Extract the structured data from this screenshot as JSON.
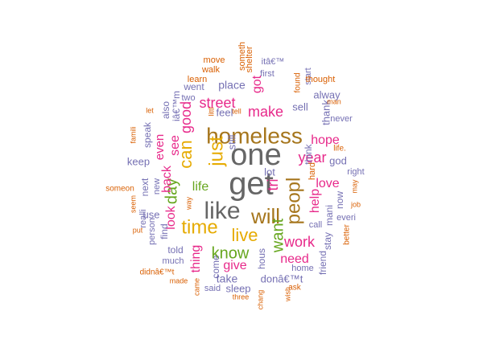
{
  "chart_data": {
    "type": "wordcloud",
    "words": [
      {
        "text": "get",
        "rank": 1,
        "color": "#666666"
      },
      {
        "text": "one",
        "rank": 1,
        "color": "#666666"
      },
      {
        "text": "homeless",
        "rank": 2,
        "color": "#a6761d"
      },
      {
        "text": "like",
        "rank": 2,
        "color": "#666666"
      },
      {
        "text": "will",
        "rank": 3,
        "color": "#a6761d"
      },
      {
        "text": "peopl",
        "rank": 3,
        "color": "#a6761d"
      },
      {
        "text": "just",
        "rank": 3,
        "color": "#e6ab02"
      },
      {
        "text": "time",
        "rank": 3,
        "color": "#e6ab02"
      },
      {
        "text": "can",
        "rank": 4,
        "color": "#e6ab02"
      },
      {
        "text": "live",
        "rank": 4,
        "color": "#e6ab02"
      },
      {
        "text": "know",
        "rank": 4,
        "color": "#66a61e"
      },
      {
        "text": "want",
        "rank": 4,
        "color": "#66a61e"
      },
      {
        "text": "day",
        "rank": 4,
        "color": "#66a61e"
      },
      {
        "text": "year",
        "rank": 5,
        "color": "#e7298a"
      },
      {
        "text": "make",
        "rank": 5,
        "color": "#e7298a"
      },
      {
        "text": "street",
        "rank": 5,
        "color": "#e7298a"
      },
      {
        "text": "work",
        "rank": 5,
        "color": "#e7298a"
      },
      {
        "text": "good",
        "rank": 5,
        "color": "#e7298a"
      },
      {
        "text": "tri",
        "rank": 5,
        "color": "#e7298a"
      },
      {
        "text": "help",
        "rank": 5,
        "color": "#e7298a"
      },
      {
        "text": "life",
        "rank": 5,
        "color": "#66a61e"
      },
      {
        "text": "hope",
        "rank": 6,
        "color": "#e7298a"
      },
      {
        "text": "love",
        "rank": 6,
        "color": "#e7298a"
      },
      {
        "text": "see",
        "rank": 6,
        "color": "#e7298a"
      },
      {
        "text": "need",
        "rank": 6,
        "color": "#e7298a"
      },
      {
        "text": "give",
        "rank": 6,
        "color": "#e7298a"
      },
      {
        "text": "look",
        "rank": 6,
        "color": "#e7298a"
      },
      {
        "text": "back",
        "rank": 6,
        "color": "#e7298a"
      },
      {
        "text": "thing",
        "rank": 6,
        "color": "#e7298a"
      },
      {
        "text": "got",
        "rank": 6,
        "color": "#e7298a"
      },
      {
        "text": "even",
        "rank": 6,
        "color": "#e7298a"
      },
      {
        "text": "take",
        "rank": 7,
        "color": "#7570b3"
      },
      {
        "text": "place",
        "rank": 7,
        "color": "#7570b3"
      },
      {
        "text": "keep",
        "rank": 7,
        "color": "#7570b3"
      },
      {
        "text": "sell",
        "rank": 7,
        "color": "#7570b3"
      },
      {
        "text": "god",
        "rank": 7,
        "color": "#7570b3"
      },
      {
        "text": "feel",
        "rank": 7,
        "color": "#7570b3"
      },
      {
        "text": "alway",
        "rank": 7,
        "color": "#7570b3"
      },
      {
        "text": "thank",
        "rank": 7,
        "color": "#7570b3"
      },
      {
        "text": "use",
        "rank": 7,
        "color": "#7570b3"
      },
      {
        "text": "lot",
        "rank": 7,
        "color": "#7570b3"
      },
      {
        "text": "still",
        "rank": 7,
        "color": "#7570b3"
      },
      {
        "text": "sleep",
        "rank": 7,
        "color": "#7570b3"
      },
      {
        "text": "donâ€™t",
        "rank": 7,
        "color": "#7570b3"
      },
      {
        "text": "come",
        "rank": 7,
        "color": "#7570b3"
      },
      {
        "text": "hous",
        "rank": 7,
        "color": "#7570b3"
      },
      {
        "text": "stay",
        "rank": 7,
        "color": "#7570b3"
      },
      {
        "text": "now",
        "rank": 7,
        "color": "#7570b3"
      },
      {
        "text": "told",
        "rank": 7,
        "color": "#7570b3"
      },
      {
        "text": "find",
        "rank": 7,
        "color": "#7570b3"
      },
      {
        "text": "mani",
        "rank": 7,
        "color": "#7570b3"
      },
      {
        "text": "speak",
        "rank": 7,
        "color": "#7570b3"
      },
      {
        "text": "went",
        "rank": 7,
        "color": "#7570b3"
      },
      {
        "text": "friend",
        "rank": 7,
        "color": "#7570b3"
      },
      {
        "text": "think",
        "rank": 7,
        "color": "#7570b3"
      },
      {
        "text": "iâ€™m",
        "rank": 7,
        "color": "#7570b3"
      },
      {
        "text": "next",
        "rank": 7,
        "color": "#7570b3"
      },
      {
        "text": "also",
        "rank": 7,
        "color": "#7570b3"
      },
      {
        "text": "first",
        "rank": 8,
        "color": "#7570b3"
      },
      {
        "text": "start",
        "rank": 8,
        "color": "#7570b3"
      },
      {
        "text": "call",
        "rank": 8,
        "color": "#7570b3"
      },
      {
        "text": "new",
        "rank": 8,
        "color": "#7570b3"
      },
      {
        "text": "right",
        "rank": 8,
        "color": "#7570b3"
      },
      {
        "text": "two",
        "rank": 8,
        "color": "#7570b3"
      },
      {
        "text": "person",
        "rank": 8,
        "color": "#7570b3"
      },
      {
        "text": "much",
        "rank": 8,
        "color": "#7570b3"
      },
      {
        "text": "realli",
        "rank": 8,
        "color": "#7570b3"
      },
      {
        "text": "said",
        "rank": 8,
        "color": "#7570b3"
      },
      {
        "text": "home",
        "rank": 8,
        "color": "#7570b3"
      },
      {
        "text": "everi",
        "rank": 8,
        "color": "#7570b3"
      },
      {
        "text": "never",
        "rank": 8,
        "color": "#7570b3"
      },
      {
        "text": "itâ€™",
        "rank": 8,
        "color": "#7570b3"
      },
      {
        "text": "hard",
        "rank": 8,
        "color": "#d95f02"
      },
      {
        "text": "learn",
        "rank": 8,
        "color": "#d95f02"
      },
      {
        "text": "walk",
        "rank": 8,
        "color": "#d95f02"
      },
      {
        "text": "move",
        "rank": 8,
        "color": "#d95f02"
      },
      {
        "text": "someth",
        "rank": 8,
        "color": "#d95f02"
      },
      {
        "text": "shelter",
        "rank": 8,
        "color": "#d95f02"
      },
      {
        "text": "thought",
        "rank": 8,
        "color": "#d95f02"
      },
      {
        "text": "found",
        "rank": 8,
        "color": "#d95f02"
      },
      {
        "text": "life.",
        "rank": 8,
        "color": "#d95f02"
      },
      {
        "text": "may",
        "rank": 8,
        "color": "#d95f02"
      },
      {
        "text": "job",
        "rank": 8,
        "color": "#d95f02"
      },
      {
        "text": "better",
        "rank": 8,
        "color": "#d95f02"
      },
      {
        "text": "someon",
        "rank": 8,
        "color": "#d95f02"
      },
      {
        "text": "seem",
        "rank": 8,
        "color": "#d95f02"
      },
      {
        "text": "put",
        "rank": 8,
        "color": "#d95f02"
      },
      {
        "text": "didnâ€™t",
        "rank": 8,
        "color": "#d95f02"
      },
      {
        "text": "made",
        "rank": 8,
        "color": "#d95f02"
      },
      {
        "text": "came",
        "rank": 8,
        "color": "#d95f02"
      },
      {
        "text": "three",
        "rank": 8,
        "color": "#d95f02"
      },
      {
        "text": "chang",
        "rank": 8,
        "color": "#d95f02"
      },
      {
        "text": "ask",
        "rank": 8,
        "color": "#d95f02"
      },
      {
        "text": "wish",
        "rank": 8,
        "color": "#d95f02"
      },
      {
        "text": "man",
        "rank": 8,
        "color": "#d95f02"
      },
      {
        "text": "let",
        "rank": 8,
        "color": "#d95f02"
      },
      {
        "text": "famili",
        "rank": 8,
        "color": "#d95f02"
      },
      {
        "text": "tell",
        "rank": 8,
        "color": "#d95f02"
      },
      {
        "text": "littl",
        "rank": 8,
        "color": "#d95f02"
      },
      {
        "text": "way",
        "rank": 8,
        "color": "#d95f02"
      }
    ]
  }
}
